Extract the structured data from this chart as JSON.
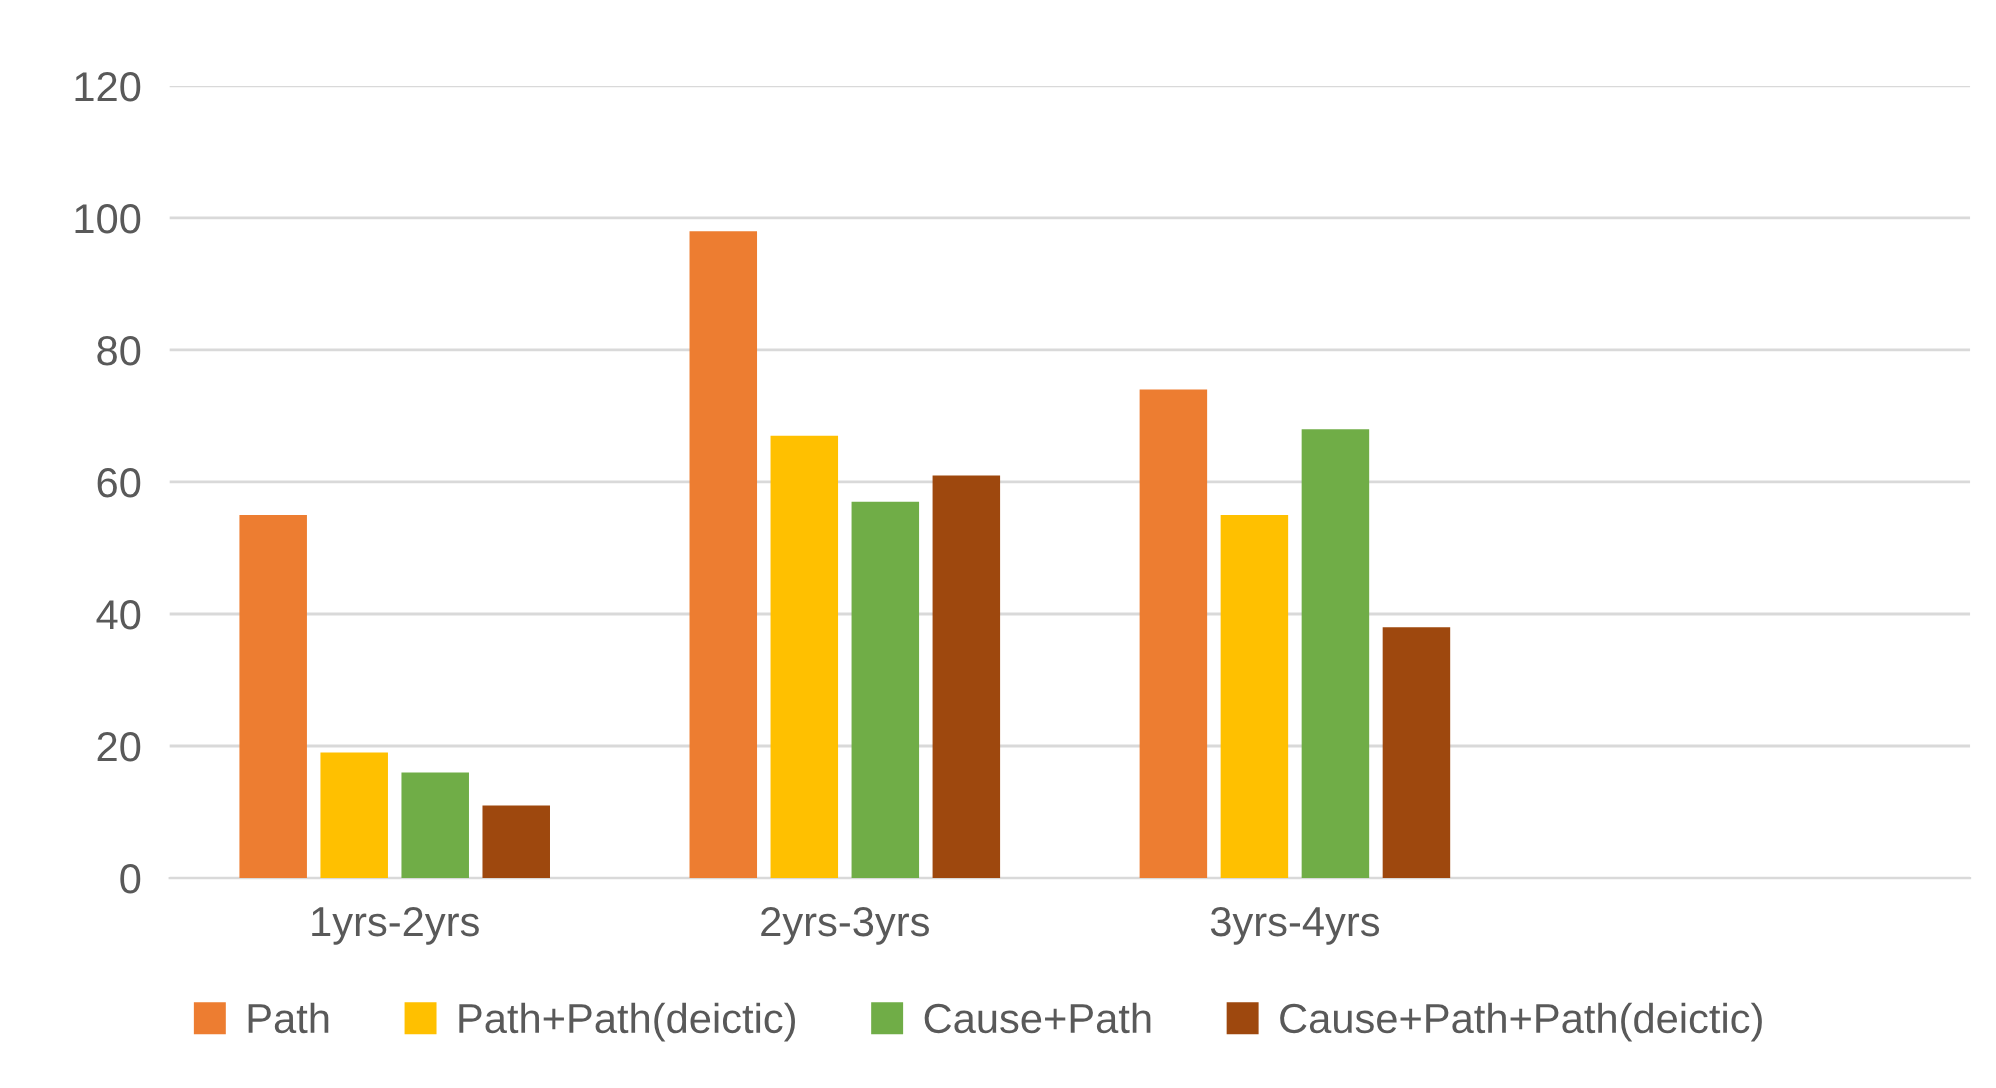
{
  "chart_data": {
    "type": "bar",
    "categories": [
      "1yrs-2yrs",
      "2yrs-3yrs",
      "3yrs-4yrs",
      null
    ],
    "series": [
      {
        "name": "Path",
        "color": "#ed7d31",
        "values": [
          55,
          98,
          74,
          null
        ]
      },
      {
        "name": "Path+Path(deictic)",
        "color": "#ffc000",
        "values": [
          19,
          67,
          55,
          null
        ]
      },
      {
        "name": "Cause+Path",
        "color": "#70ad47",
        "values": [
          16,
          57,
          68,
          null
        ]
      },
      {
        "name": "Cause+Path+Path(deictic)",
        "color": "#9e480e",
        "values": [
          11,
          61,
          38,
          null
        ]
      }
    ],
    "ylim": [
      0,
      120
    ],
    "yticks": [
      0,
      20,
      40,
      60,
      80,
      100,
      120
    ],
    "grid": "y",
    "legend": "bottom"
  }
}
